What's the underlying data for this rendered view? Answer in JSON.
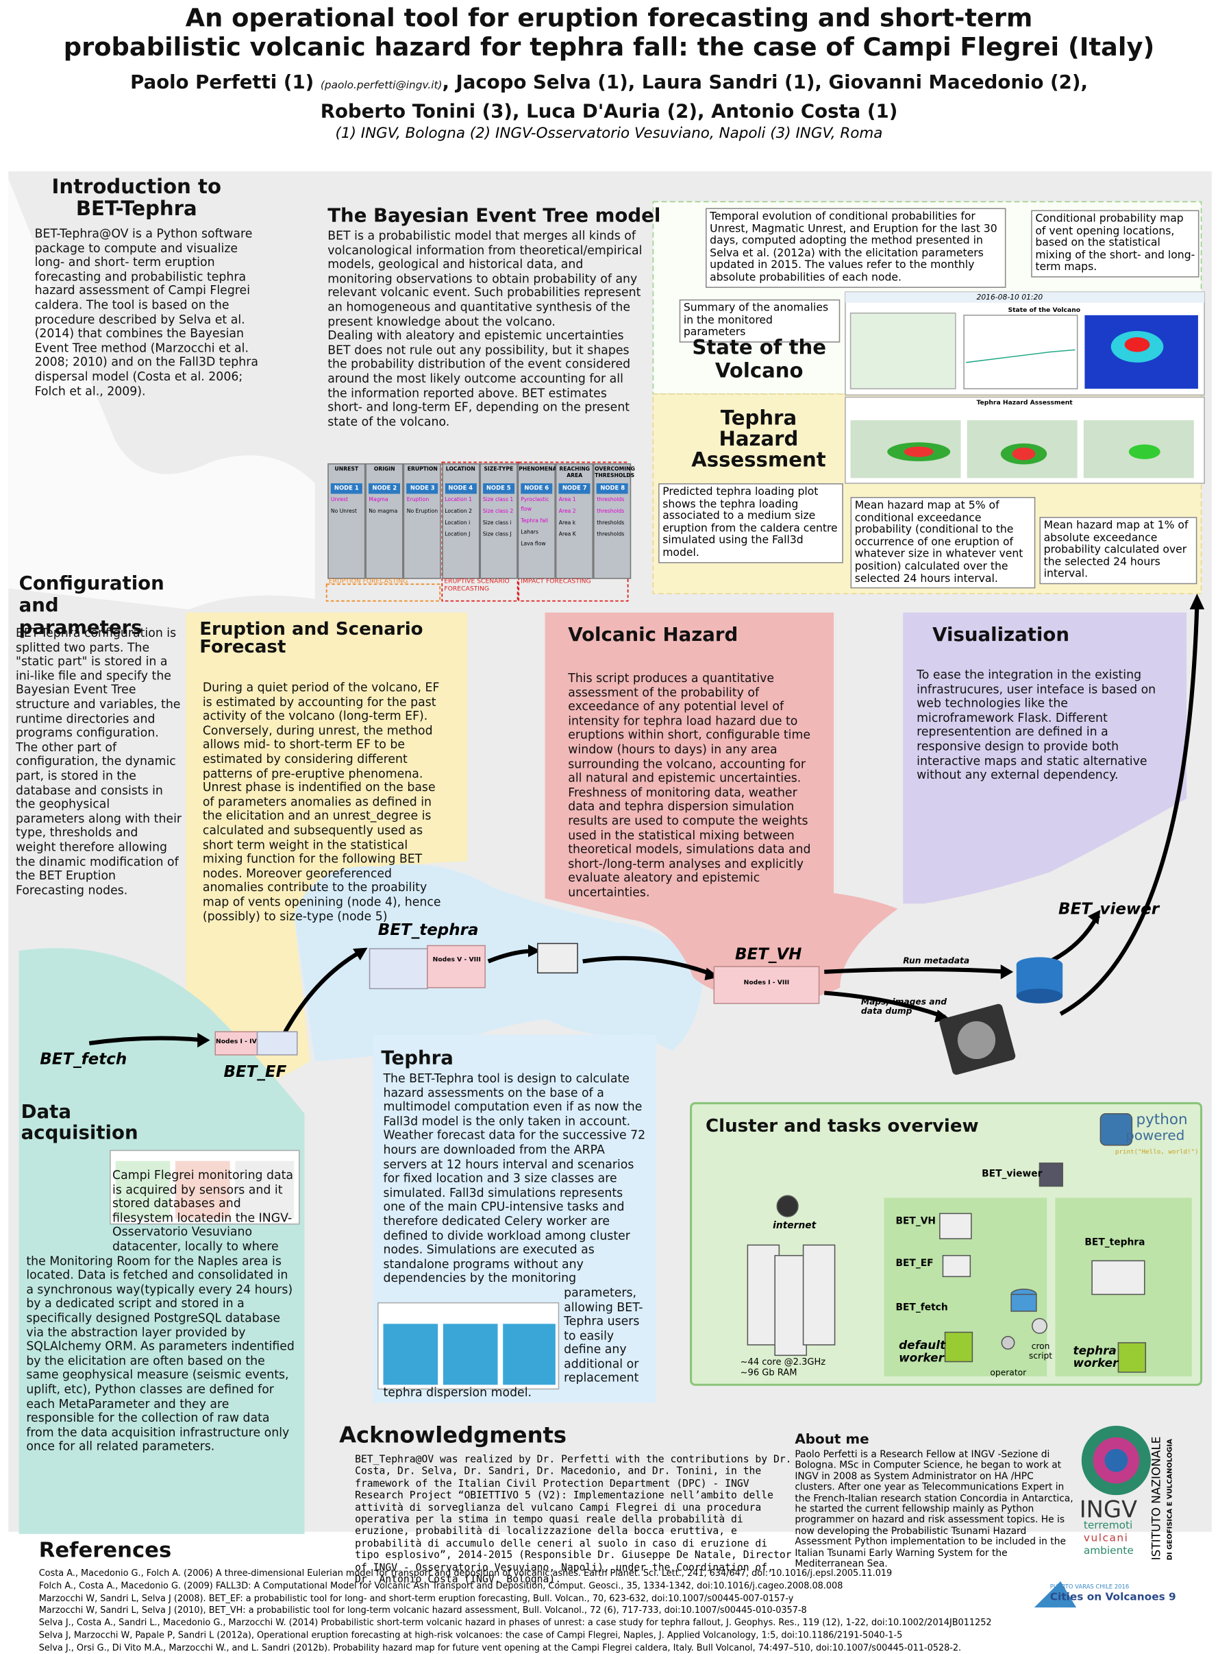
{
  "header": {
    "title_lines": [
      "An operational tool for eruption forecasting and short-term",
      "probabilistic volcanic hazard for tephra fall: the case of Campi Flegrei (Italy)"
    ],
    "authors_line1_a": "Paolo Perfetti  (1)",
    "email": "(paolo.perfetti@ingv.it)",
    "authors_line1_b": ", Jacopo Selva (1),  Laura Sandri  (1), Giovanni Macedonio (2),",
    "authors_line2": "Roberto Tonini (3), Luca D'Auria (2), Antonio Costa (1)",
    "affiliations": "(1) INGV, Bologna   (2) INGV-Osservatorio Vesuviano, Napoli   (3) INGV, Roma"
  },
  "intro": {
    "title": "Introduction to BET-Tephra",
    "body": "BET-Tephra@OV is a Python software package to compute and visualize long- and short- term eruption forecasting and probabilistic tephra hazard assessment of Campi Flegrei caldera. The tool is based on the procedure described by Selva et al. (2014) that combines the Bayesian Event Tree method (Marzocchi et al. 2008; 2010) and on the Fall3D tephra dispersal model (Costa et al. 2006; Folch et al., 2009)."
  },
  "bet_model": {
    "title": "The Bayesian Event Tree model",
    "paragraphs": [
      "BET is a probabilistic model that merges all kinds of volcanological information from theoretical/empirical models, geological and historical data, and monitoring observations to obtain probability of any relevant volcanic event. Such probabilities represent an homogeneous and quantitative synthesis of the present knowledge about the volcano.",
      "Dealing with aleatory and epistemic uncertainties BET does not rule out any possibility, but it shapes the probability distribution of the event considered around the most likely outcome accounting for all the information reported above. BET estimates short- and long-term EF, depending on the present state of the volcano."
    ]
  },
  "tree": {
    "columns": [
      {
        "header": "UNREST",
        "node": "NODE 1",
        "items": [
          "Unrest",
          "No Unrest"
        ]
      },
      {
        "header": "ORIGIN",
        "node": "NODE 2",
        "items": [
          "Magma",
          "No magma"
        ]
      },
      {
        "header": "ERUPTION",
        "node": "NODE 3",
        "items": [
          "Eruption",
          "No Eruption"
        ]
      },
      {
        "header": "LOCATION",
        "node": "NODE 4",
        "items": [
          "Location 1",
          "Location 2",
          "Location i",
          "Location J"
        ]
      },
      {
        "header": "SIZE-TYPE",
        "node": "NODE 5",
        "items": [
          "Size class 1",
          "Size class 2",
          "Size class i",
          "Size class J"
        ]
      },
      {
        "header": "PHENOMENA",
        "node": "NODE 6",
        "items": [
          "Pyroclastic flow",
          "Tephra fall",
          "Lahars",
          "Lava flow"
        ]
      },
      {
        "header": "REACHING AREA",
        "node": "NODE 7",
        "items": [
          "Area 1",
          "Area 2",
          "Area k",
          "Area K"
        ]
      },
      {
        "header": "OVERCOMING THRESHOLDS",
        "node": "NODE 8",
        "items": [
          "thresholds",
          "thresholds",
          "thresholds",
          "thresholds"
        ]
      }
    ],
    "groups": [
      "ERUPTION FORECASTING",
      "ERUPTIVE SCENARIO FORECASTING",
      "IMPACT FORECASTING"
    ]
  },
  "state": {
    "heading": "State of the Volcano",
    "caption_temporal": "Temporal evolution of conditional probabilities for Unrest, Magmatic Unrest, and Eruption for the last 30 days, computed adopting the method presented in Selva et al. (2012a) with the elicitation parameters updated in 2015. The values refer to the monthly absolute probabilities of each node.",
    "caption_map": "Conditional probability map of vent opening locations, based on the statistical mixing of the short- and long-term maps.",
    "caption_summary": "Summary of the anomalies in the monitored parameters",
    "screen_date": "2016-08-10 01:20",
    "screen_title": "State of the Volcano"
  },
  "tephra_hazard": {
    "heading": "Tephra Hazard Assessment",
    "screen_title": "Tephra Hazard Assessment",
    "caption_loading": "Predicted tephra loading plot shows the tephra loading associated to a medium size eruption from the caldera centre simulated using the Fall3d model.",
    "caption_5": "Mean hazard map at 5% of conditional exceedance probability (conditional to the occurrence of one eruption of whatever size in whatever vent position) calculated over the selected 24 hours interval.",
    "caption_1": "Mean hazard map at 1% of absolute exceedance probability calculated over the selected 24 hours interval."
  },
  "config": {
    "title": "Configuration and parameters",
    "body": "BET-Tephra configuration is splitted two parts. The \"static part\" is stored in a ini-like file and specify the Bayesian Event Tree structure and variables, the runtime directories and programs configuration. The other part of configuration, the dynamic part, is stored in the database and consists in the geophysical parameters along with their type, thresholds and weight therefore allowing the dinamic modification of the BET Eruption Forecasting nodes."
  },
  "eruption": {
    "title": "Eruption and Scenario Forecast",
    "body": "During a quiet period of the volcano, EF is estimated by accounting for the past activity of the volcano (long-term EF). Conversely, during unrest, the method allows mid- to short-term EF to be estimated by considering different patterns of pre-eruptive phenomena. Unrest phase is indentified on the base of parameters anomalies as defined in the elicitation and an unrest_degree is calculated and subsequently used as short term weight in the statistical mixing function for the following BET nodes. Moreover georeferenced anomalies contribute to the proability map of vents openining (node 4), hence (possibly) to size-type (node 5)"
  },
  "hazard": {
    "title": "Volcanic Hazard",
    "body": "This script produces a quantitative assessment of the probability of exceedance of any potential level of intensity for tephra load hazard due to eruptions within short, configurable time window (hours to days) in any area surrounding the volcano, accounting for all natural and epistemic uncertainties. Freshness of monitoring data, weather data and tephra dispersion simulation results are used to compute the weights used in the statistical mixing between theoretical models, simulations data and short-/long-term analyses and explicitly evaluate aleatory and epistemic uncertainties."
  },
  "visualization": {
    "title": "Visualization",
    "body": "To ease the integration in the existing infrastrucures, user inteface is based on web technologies like the microframework Flask. Different representention are defined in a responsive design to provide both interactive maps and static alternative without any external dependency."
  },
  "flow": {
    "bet_tephra": "BET_tephra",
    "nodes_tephra": "Nodes V - VIII",
    "bet_vh": "BET_VH",
    "nodes_vh": "Nodes I - VIII",
    "bet_viewer": "BET_viewer",
    "bet_fetch": "BET_fetch",
    "bet_ef": "BET_EF",
    "nodes_ef": "Nodes I - IV",
    "run_metadata": "Run metadata",
    "maps_dump": "Maps, images and data dump"
  },
  "data_acq": {
    "title": "Data acquisition",
    "body": "Campi Flegrei monitoring data is acquired by sensors and it stored databases and filesystem locatedin the INGV-Osservatorio Vesuviano datacenter, locally to where the Monitoring Room for the Naples area is located. Data is fetched and consolidated in a synchronous way(typically every 24 hours) by a dedicated script and stored in a specifically designed PostgreSQL database via the abstraction layer provided by SQLAlchemy ORM.  As parameters indentified by the elicitation are often based on the same geophysical measure (seismic events, uplift, etc), Python classes are defined for each MetaParameter and they are responsible for the collection of raw data from the data acquisition infrastructure only once for all related parameters."
  },
  "tephra": {
    "title": "Tephra",
    "body": "The BET-Tephra tool is design to calculate hazard assessments on the base of a multimodel computation even if as now the Fall3d model is the only taken in account. Weather forecast data for the successive 72 hours are downloaded from the ARPA servers at 12 hours interval and scenarios for fixed location and 3 size classes are simulated. Fall3d simulations represents one of the main CPU-intensive tasks and therefore dedicated Celery worker are defined to divide workload among cluster nodes. Simulations are executed as standalone programs without any dependencies by the monitoring parameters, allowing BET-Tephra users to easily define any additional or replacement tephra dispersion model."
  },
  "cluster": {
    "title": "Cluster and tasks overview",
    "python": "python",
    "powered": "powered",
    "hello": "print(\"Hello, world!\")",
    "bet_viewer": "BET_viewer",
    "bet_vh": "BET_VH",
    "bet_ef": "BET_EF",
    "bet_fetch": "BET_fetch",
    "bet_tephra": "BET_tephra",
    "internet": "internet",
    "default_worker": "default worker",
    "tephra_worker": "tephra worker",
    "cron": "cron script",
    "operator": "operator",
    "cores": "~44 core @2.3GHz",
    "ram": "~96 Gb RAM"
  },
  "ack": {
    "title": "Acknowledgments",
    "body": "BET_Tephra@OV was realized by Dr. Perfetti with the contributions by Dr. Costa, Dr. Selva, Dr. Sandri, Dr. Macedonio, and Dr. Tonini, in the framework of the Italian Civil Protection Department (DPC) - INGV Research Project “OBIETTIVO 5 (V2): Implementazione nell’ambito delle attività di sorveglianza del vulcano Campi Flegrei di una procedura operativa per la stima in tempo quasi reale della probabilità di eruzione, probabilità di localizzazione della bocca eruttiva, e probabilità di accumulo delle ceneri al suolo in caso di eruzione di tipo esplosivo”, 2014-2015 (Responsible Dr. Giuseppe De Natale, Director of INGV - Osservatorio Vesuviano, Napoli), under the Coordination of, Dr. Antonio Costa (INGV, Bologna)."
  },
  "about": {
    "title": "About me",
    "body": "Paolo Perfetti is a Research Fellow at INGV -Sezione di Bologna. MSc in Computer Science, he began to work  at INGV in 2008 as System Administrator on HA /HPC clusters. After one year as Telecommunications Expert in the French-Italian research station Concordia in Antarctica, he started the current fellowship mainly as Python programmer on hazard and risk assessment topics. He is now developing the Probabilistic Tsunami Hazard Assessment Python implementation to be included in the Italian Tsunami Early Warning System for the Mediterranean Sea."
  },
  "logos": {
    "ingv": "INGV",
    "terremoti": "terremoti",
    "vulcani": "vulcani",
    "ambiente": "ambiente",
    "istituto": "ISTITUTO NAZIONALE",
    "geofisica": "DI GEOFISICA E VULCANOLOGIA",
    "cov_place": "PUERTO VARAS CHILE 2016",
    "cov_name": "Cities on Volcanoes 9"
  },
  "references": {
    "title": "References",
    "items": [
      "Costa A., Macedonio G., Folch A. (2006) A three-dimensional Eulerian model for transport and deposition of volcanic ashes. Earth Planet. Sci. Lett., 241, 634/647, doi: 10.1016/j.epsl.2005.11.019",
      "Folch A., Costa A., Macedonio G. (2009) FALL3D: A Computational Model for Volcanic Ash Transport and Deposition, Comput. Geosci., 35, 1334-1342, doi:10.1016/j.cageo.2008.08.008",
      "Marzocchi W, Sandri L, Selva J (2008). BET_EF: a probabilistic tool for long- and short-term eruption forecasting, Bull. Volcan., 70, 623-632, doi:10.1007/s00445-007-0157-y",
      "Marzocchi W, Sandri L, Selva J (2010), BET_VH: a probabilistic tool for long-term volcanic hazard assessment, Bull. Volcanol., 72 (6), 717-733, doi:10.1007/s00445-010-0357-8",
      "Selva J., Costa A., Sandri L., Macedonio G., Marzocchi W. (2014) Probabilistic short-term volcanic hazard in phases of unrest: a case study for tephra fallout, J. Geophys. Res., 119 (12), 1-22, doi:10.1002/2014JB011252",
      "Selva J, Marzocchi W, Papale P, Sandri L (2012a), Operational eruption forecasting at high-risk volcanoes: the case of Campi Flegrei, Naples, J. Applied Volcanology, 1:5, doi:10.1186/2191-5040-1-5",
      "Selva J., Orsi G., Di Vito M.A., Marzocchi W., and L. Sandri (2012b). Probability hazard map for future vent opening at the Campi Flegrei caldera, Italy. Bull Volcanol, 74:497–510, doi:10.1007/s00445-011-0528-2."
    ]
  }
}
